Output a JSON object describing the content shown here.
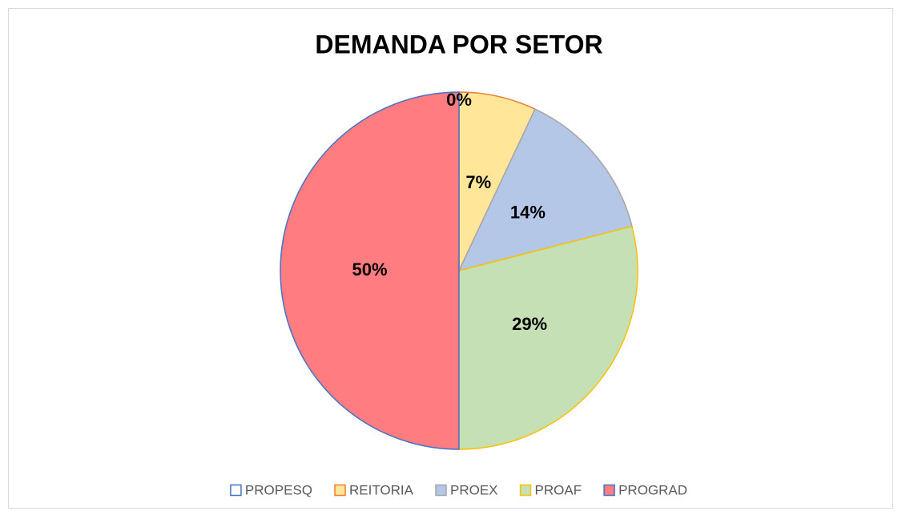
{
  "chart_data": {
    "type": "pie",
    "title": "DEMANDA POR SETOR",
    "categories": [
      "PROPESQ",
      "REITORIA",
      "PROEX",
      "PROAF",
      "PROGRAD"
    ],
    "values": [
      0,
      7,
      14,
      29,
      50
    ],
    "value_labels": [
      "0%",
      "7%",
      "14%",
      "29%",
      "50%"
    ],
    "colors": [
      "#ffffff",
      "#ffe699",
      "#b4c7e7",
      "#c5e0b4",
      "#ff7c80"
    ],
    "edge_colors": [
      "#4472c4",
      "#ed7d31",
      "#a5a5a5",
      "#ffc000",
      "#4472c4"
    ],
    "legend": "bottom"
  }
}
